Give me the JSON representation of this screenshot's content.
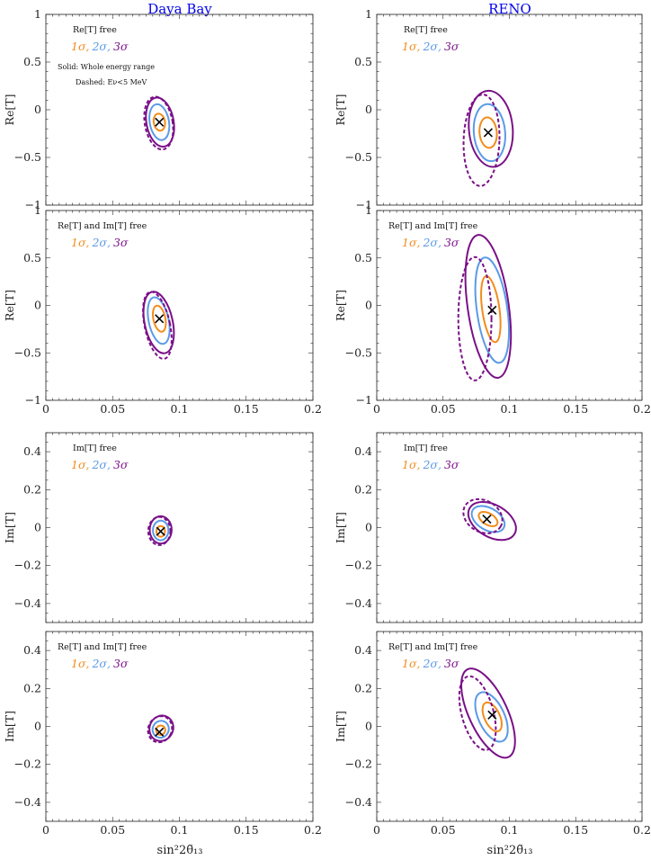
{
  "columns": {
    "left_title": "Daya Bay",
    "right_title": "RENO",
    "title_color": "#0000ee"
  },
  "colors": {
    "one_sigma": "#f28c1c",
    "two_sigma": "#5b9ae6",
    "three_sigma": "#7a1087",
    "axis": "#222222",
    "best_fit": "#000000"
  },
  "legend": {
    "s1": "1σ,",
    "s2": "2σ,",
    "s3": "3σ"
  },
  "common": {
    "xlabel": "sin²2θ̃₁₃",
    "x_ticks": [
      "0",
      "0.05",
      "0.1",
      "0.15",
      "0.2"
    ],
    "re_ylabel": "Re[T]",
    "im_ylabel": "Im[T]",
    "re_ticks": [
      "1",
      "0.5",
      "0",
      "−0.5",
      "−1"
    ],
    "im_ticks": [
      "0.4",
      "0.2",
      "0",
      "−0.2",
      "−0.4"
    ]
  },
  "chart_data": [
    {
      "type": "scatter",
      "id": "p1",
      "experiment": "Daya Bay",
      "param": "Re[T]",
      "xlim": [
        0,
        0.2
      ],
      "ylim": [
        -1,
        1
      ],
      "label": "Re[T] free",
      "notes": [
        "Solid: Whole energy range",
        "Dashed: Eν<5 MeV"
      ],
      "best_fit": [
        0.085,
        -0.13
      ],
      "contours": [
        {
          "sigma": 1,
          "style": "solid",
          "cx": 0.085,
          "cy": -0.13,
          "rx": 0.0042,
          "ry": 0.09,
          "rot": -10
        },
        {
          "sigma": 2,
          "style": "solid",
          "cx": 0.085,
          "cy": -0.13,
          "rx": 0.0072,
          "ry": 0.19,
          "rot": -10
        },
        {
          "sigma": 3,
          "style": "solid",
          "cx": 0.0855,
          "cy": -0.13,
          "rx": 0.0102,
          "ry": 0.26,
          "rot": -10
        },
        {
          "sigma": 3,
          "style": "dashed",
          "cx": 0.0845,
          "cy": -0.14,
          "rx": 0.0104,
          "ry": 0.28,
          "rot": -10
        }
      ]
    },
    {
      "type": "scatter",
      "id": "p2",
      "experiment": "RENO",
      "param": "Re[T]",
      "xlim": [
        0,
        0.2
      ],
      "ylim": [
        -1,
        1
      ],
      "label": "Re[T] free",
      "best_fit": [
        0.084,
        -0.24
      ],
      "contours": [
        {
          "sigma": 1,
          "style": "solid",
          "cx": 0.084,
          "cy": -0.24,
          "rx": 0.0065,
          "ry": 0.16,
          "rot": -5
        },
        {
          "sigma": 2,
          "style": "solid",
          "cx": 0.085,
          "cy": -0.24,
          "rx": 0.0118,
          "ry": 0.3,
          "rot": -5
        },
        {
          "sigma": 3,
          "style": "solid",
          "cx": 0.086,
          "cy": -0.2,
          "rx": 0.0165,
          "ry": 0.4,
          "rot": -5
        },
        {
          "sigma": 3,
          "style": "dashed",
          "cx": 0.079,
          "cy": -0.32,
          "rx": 0.0135,
          "ry": 0.48,
          "rot": 2
        }
      ]
    },
    {
      "type": "scatter",
      "id": "p3",
      "experiment": "Daya Bay",
      "param": "Re[T]",
      "xlim": [
        0,
        0.2
      ],
      "ylim": [
        -1,
        1
      ],
      "label": "Re[T] and Im[T] free",
      "best_fit": [
        0.085,
        -0.14
      ],
      "contours": [
        {
          "sigma": 1,
          "style": "solid",
          "cx": 0.085,
          "cy": -0.14,
          "rx": 0.0045,
          "ry": 0.14,
          "rot": -12
        },
        {
          "sigma": 2,
          "style": "solid",
          "cx": 0.0845,
          "cy": -0.16,
          "rx": 0.0075,
          "ry": 0.25,
          "rot": -12
        },
        {
          "sigma": 3,
          "style": "solid",
          "cx": 0.0845,
          "cy": -0.18,
          "rx": 0.0105,
          "ry": 0.33,
          "rot": -12
        },
        {
          "sigma": 3,
          "style": "dashed",
          "cx": 0.0835,
          "cy": -0.21,
          "rx": 0.0095,
          "ry": 0.36,
          "rot": -12
        }
      ]
    },
    {
      "type": "scatter",
      "id": "p4",
      "experiment": "RENO",
      "param": "Re[T]",
      "xlim": [
        0,
        0.2
      ],
      "ylim": [
        -1,
        1
      ],
      "label": "Re[T] and Im[T] free",
      "best_fit": [
        0.087,
        -0.05
      ],
      "contours": [
        {
          "sigma": 1,
          "style": "solid",
          "cx": 0.086,
          "cy": -0.04,
          "rx": 0.0065,
          "ry": 0.35,
          "rot": -8
        },
        {
          "sigma": 2,
          "style": "solid",
          "cx": 0.087,
          "cy": -0.05,
          "rx": 0.0115,
          "ry": 0.56,
          "rot": -8
        },
        {
          "sigma": 3,
          "style": "solid",
          "cx": 0.084,
          "cy": -0.01,
          "rx": 0.0155,
          "ry": 0.76,
          "rot": -8
        },
        {
          "sigma": 3,
          "style": "dashed",
          "cx": 0.074,
          "cy": -0.14,
          "rx": 0.0125,
          "ry": 0.65,
          "rot": 0
        }
      ]
    },
    {
      "type": "scatter",
      "id": "p5",
      "experiment": "Daya Bay",
      "param": "Im[T]",
      "xlim": [
        0,
        0.2
      ],
      "ylim": [
        -0.5,
        0.5
      ],
      "label": "Im[T] free",
      "best_fit": [
        0.086,
        -0.02
      ],
      "contours": [
        {
          "sigma": 1,
          "style": "solid",
          "cx": 0.086,
          "cy": -0.02,
          "rx": 0.0032,
          "ry": 0.028,
          "rot": 0
        },
        {
          "sigma": 2,
          "style": "solid",
          "cx": 0.086,
          "cy": -0.015,
          "rx": 0.0058,
          "ry": 0.052,
          "rot": 0
        },
        {
          "sigma": 3,
          "style": "solid",
          "cx": 0.086,
          "cy": -0.012,
          "rx": 0.0082,
          "ry": 0.072,
          "rot": 0
        },
        {
          "sigma": 3,
          "style": "dashed",
          "cx": 0.085,
          "cy": -0.018,
          "rx": 0.0083,
          "ry": 0.074,
          "rot": 0
        }
      ]
    },
    {
      "type": "scatter",
      "id": "p6",
      "experiment": "RENO",
      "param": "Im[T]",
      "xlim": [
        0,
        0.2
      ],
      "ylim": [
        -0.5,
        0.5
      ],
      "label": "Im[T] free",
      "best_fit": [
        0.083,
        0.045
      ],
      "contours": [
        {
          "sigma": 1,
          "style": "solid",
          "cx": 0.084,
          "cy": 0.045,
          "rx": 0.0078,
          "ry": 0.03,
          "rot": 30
        },
        {
          "sigma": 2,
          "style": "solid",
          "cx": 0.084,
          "cy": 0.045,
          "rx": 0.0135,
          "ry": 0.058,
          "rot": 30
        },
        {
          "sigma": 3,
          "style": "solid",
          "cx": 0.087,
          "cy": 0.035,
          "rx": 0.0195,
          "ry": 0.085,
          "rot": 30
        },
        {
          "sigma": 3,
          "style": "dashed",
          "cx": 0.08,
          "cy": 0.06,
          "rx": 0.0155,
          "ry": 0.083,
          "rot": 30
        }
      ]
    },
    {
      "type": "scatter",
      "id": "p7",
      "experiment": "Daya Bay",
      "param": "Im[T]",
      "xlim": [
        0,
        0.2
      ],
      "ylim": [
        -0.5,
        0.5
      ],
      "label": "Re[T] and Im[T] free",
      "best_fit": [
        0.085,
        -0.03
      ],
      "contours": [
        {
          "sigma": 1,
          "style": "solid",
          "cx": 0.086,
          "cy": -0.02,
          "rx": 0.0034,
          "ry": 0.025,
          "rot": 25
        },
        {
          "sigma": 2,
          "style": "solid",
          "cx": 0.086,
          "cy": -0.015,
          "rx": 0.006,
          "ry": 0.045,
          "rot": 25
        },
        {
          "sigma": 3,
          "style": "solid",
          "cx": 0.0865,
          "cy": -0.01,
          "rx": 0.0088,
          "ry": 0.068,
          "rot": 25
        },
        {
          "sigma": 3,
          "style": "dashed",
          "cx": 0.0855,
          "cy": -0.015,
          "rx": 0.0088,
          "ry": 0.07,
          "rot": 25
        }
      ]
    },
    {
      "type": "scatter",
      "id": "p8",
      "experiment": "RENO",
      "param": "Im[T]",
      "xlim": [
        0,
        0.2
      ],
      "ylim": [
        -0.5,
        0.5
      ],
      "label": "Re[T] and Im[T] free",
      "best_fit": [
        0.087,
        0.06
      ],
      "contours": [
        {
          "sigma": 1,
          "style": "solid",
          "cx": 0.087,
          "cy": 0.05,
          "rx": 0.0058,
          "ry": 0.082,
          "rot": -25
        },
        {
          "sigma": 2,
          "style": "solid",
          "cx": 0.0865,
          "cy": 0.05,
          "rx": 0.0098,
          "ry": 0.14,
          "rot": -25
        },
        {
          "sigma": 3,
          "style": "solid",
          "cx": 0.084,
          "cy": 0.07,
          "rx": 0.0145,
          "ry": 0.255,
          "rot": -25
        },
        {
          "sigma": 3,
          "style": "dashed",
          "cx": 0.076,
          "cy": 0.07,
          "rx": 0.012,
          "ry": 0.2,
          "rot": -15
        }
      ]
    }
  ]
}
